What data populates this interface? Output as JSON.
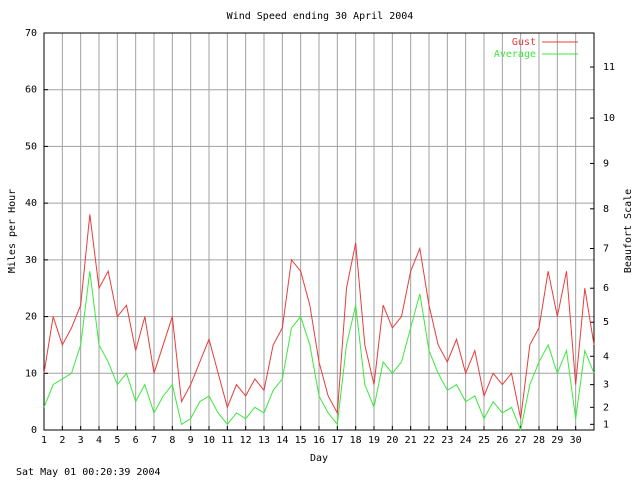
{
  "chart_data": {
    "type": "line",
    "title": "Wind Speed ending 30 April 2004",
    "x_label": "Day",
    "y_label": "Miles per Hour",
    "y2_label": "Beaufort Scale",
    "footer": "Sat May 01 00:20:39 2004",
    "x": [
      1,
      1.5,
      2,
      2.5,
      3,
      3.5,
      4,
      4.5,
      5,
      5.5,
      6,
      6.5,
      7,
      7.5,
      8,
      8.5,
      9,
      9.5,
      10,
      10.5,
      11,
      11.5,
      12,
      12.5,
      13,
      13.5,
      14,
      14.5,
      15,
      15.5,
      16,
      16.5,
      17,
      17.5,
      18,
      18.5,
      19,
      19.5,
      20,
      20.5,
      21,
      21.5,
      22,
      22.5,
      23,
      23.5,
      24,
      24.5,
      25,
      25.5,
      26,
      26.5,
      27,
      27.5,
      28,
      28.5,
      29,
      29.5,
      30,
      30.5,
      31
    ],
    "series": [
      {
        "name": "Gust",
        "color": "#e83c3c",
        "values": [
          10,
          20,
          15,
          18,
          22,
          38,
          25,
          28,
          20,
          22,
          14,
          20,
          10,
          15,
          20,
          5,
          8,
          12,
          16,
          10,
          4,
          8,
          6,
          9,
          7,
          15,
          18,
          30,
          28,
          22,
          12,
          6,
          3,
          25,
          33,
          15,
          8,
          22,
          18,
          20,
          28,
          32,
          22,
          15,
          12,
          16,
          10,
          14,
          6,
          10,
          8,
          10,
          2,
          15,
          18,
          28,
          20,
          28,
          8,
          25,
          15
        ]
      },
      {
        "name": "Average",
        "color": "#3ce83c",
        "values": [
          4,
          8,
          9,
          10,
          15,
          28,
          15,
          12,
          8,
          10,
          5,
          8,
          3,
          6,
          8,
          1,
          2,
          5,
          6,
          3,
          1,
          3,
          2,
          4,
          3,
          7,
          9,
          18,
          20,
          15,
          6,
          3,
          1,
          15,
          22,
          8,
          4,
          12,
          10,
          12,
          18,
          24,
          14,
          10,
          7,
          8,
          5,
          6,
          2,
          5,
          3,
          4,
          0,
          8,
          12,
          15,
          10,
          14,
          2,
          14,
          10
        ]
      }
    ],
    "xlim": [
      1,
      31
    ],
    "xticks": [
      1,
      2,
      3,
      4,
      5,
      6,
      7,
      8,
      9,
      10,
      11,
      12,
      13,
      14,
      15,
      16,
      17,
      18,
      19,
      20,
      21,
      22,
      23,
      24,
      25,
      26,
      27,
      28,
      29,
      30
    ],
    "ylim": [
      0,
      70
    ],
    "yticks": [
      0,
      10,
      20,
      30,
      40,
      50,
      60,
      70
    ],
    "y2lim": [
      0,
      70
    ],
    "y2ticks": [
      1,
      {
        "value": 4,
        "label": "2"
      },
      {
        "value": 8,
        "label": "3"
      },
      {
        "value": 13,
        "label": "4"
      },
      {
        "value": 19,
        "label": "5"
      },
      {
        "value": 25,
        "label": "6"
      },
      {
        "value": 32,
        "label": "7"
      },
      {
        "value": 39,
        "label": "8"
      },
      {
        "value": 47,
        "label": "9"
      },
      {
        "value": 55,
        "label": "10"
      },
      {
        "value": 64,
        "label": "11"
      }
    ],
    "grid": true,
    "legend": "top-right"
  }
}
